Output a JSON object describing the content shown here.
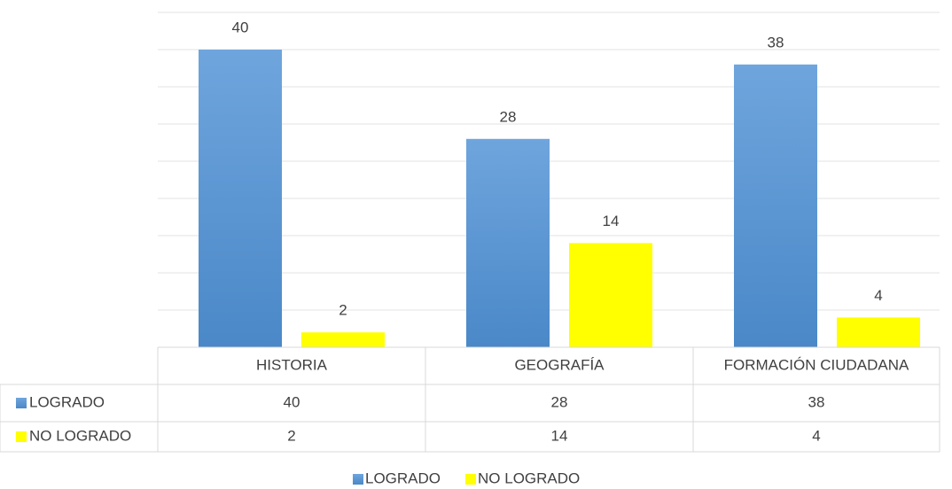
{
  "chart_data": {
    "type": "bar",
    "categories": [
      "HISTORIA",
      "GEOGRAFÍA",
      "FORMACIÓN CIUDADANA"
    ],
    "series": [
      {
        "name": "LOGRADO",
        "color": "#5b9bd5",
        "values": [
          40,
          28,
          38
        ]
      },
      {
        "name": "NO LOGRADO",
        "color": "#ffff00",
        "values": [
          2,
          14,
          4
        ]
      }
    ],
    "ylim": [
      0,
      45
    ],
    "yticks": [
      0,
      5,
      10,
      15,
      20,
      25,
      30,
      35,
      40,
      45
    ],
    "grid": true,
    "data_table": true,
    "legend": "bottom"
  }
}
